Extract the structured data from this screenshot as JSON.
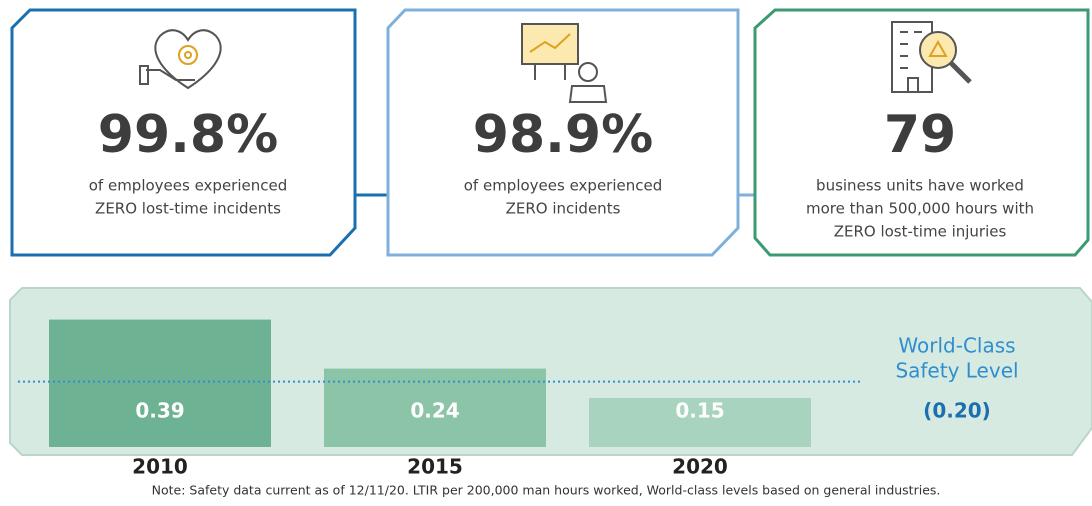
{
  "stats": [
    {
      "value": "99.8%",
      "lines": [
        "of employees experienced",
        "ZERO lost-time incidents"
      ]
    },
    {
      "value": "98.9%",
      "lines": [
        "of employees experienced",
        "ZERO incidents"
      ]
    },
    {
      "value": "79",
      "lines": [
        "business units have worked",
        "more than 500,000 hours with",
        "ZERO lost-time injuries"
      ]
    }
  ],
  "chart_data": {
    "type": "bar",
    "categories": [
      "2010",
      "2015",
      "2020"
    ],
    "values": [
      0.39,
      0.24,
      0.15
    ],
    "value_labels": [
      "0.39",
      "0.24",
      "0.15"
    ],
    "colors": [
      "#6db393",
      "#8cc4a8",
      "#a8d4bf"
    ],
    "ylim": [
      0,
      0.45
    ],
    "reference": {
      "label_lines": [
        "World-Class",
        "Safety Level"
      ],
      "value": 0.2,
      "value_label": "(0.20)"
    },
    "note": "Note: Safety data current as of 12/11/20. LTIR per 200,000 man hours worked, World-class levels based on general industries."
  }
}
